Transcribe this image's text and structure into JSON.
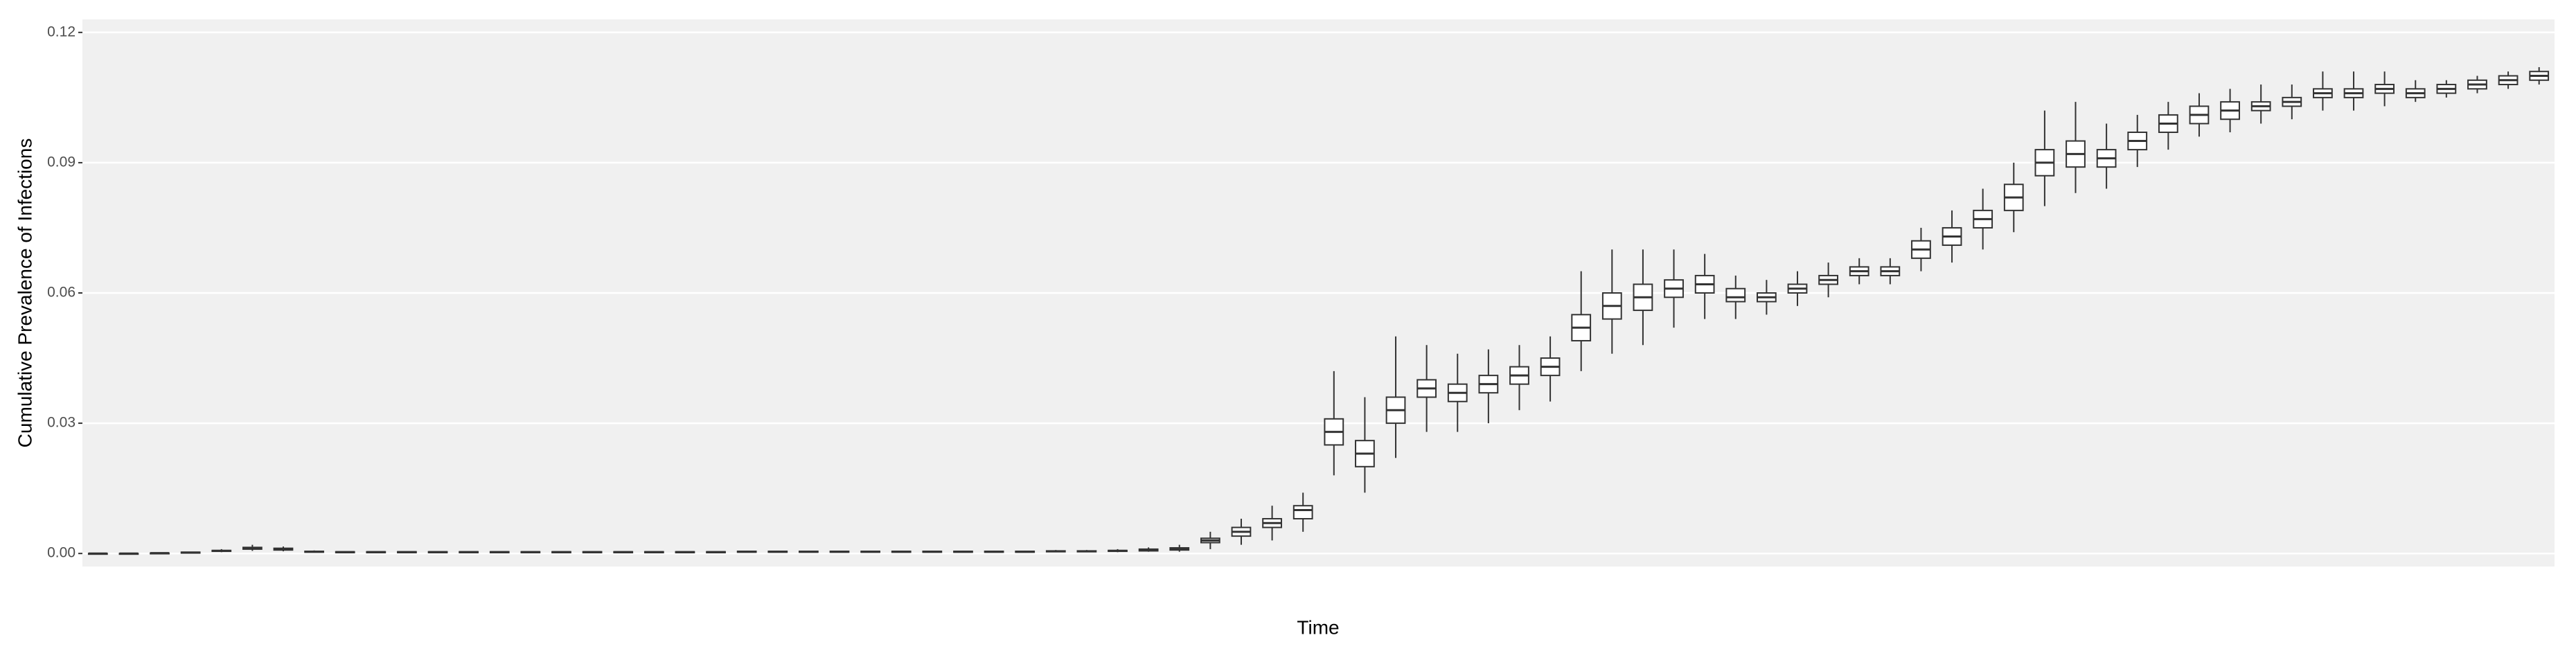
{
  "chart_data": {
    "type": "boxplot",
    "x_label": "Time",
    "y_label": "Cumulative Prevalence of Infections",
    "ylim": [
      -0.003,
      0.123
    ],
    "yticks": [
      {
        "value": 0,
        "label": "0.00"
      },
      0.03,
      0.06,
      0.09,
      0.12
    ],
    "grid": true,
    "box_color": "#333333",
    "box_fill": "#ffffff",
    "median": [
      0,
      0,
      0.0001,
      0.0002,
      0.0006,
      0.0012,
      0.001,
      0.0004,
      0.0003,
      0.0003,
      0.0003,
      0.0003,
      0.0003,
      0.0003,
      0.0003,
      0.0003,
      0.0003,
      0.0003,
      0.0003,
      0.0003,
      0.0003,
      0.0004,
      0.0004,
      0.0004,
      0.0004,
      0.0004,
      0.0004,
      0.0004,
      0.0004,
      0.0004,
      0.0004,
      0.0005,
      0.0005,
      0.0006,
      0.0008,
      0.001,
      0.003,
      0.005,
      0.007,
      0.01,
      0.028,
      0.023,
      0.033,
      0.038,
      0.037,
      0.039,
      0.041,
      0.043,
      0.052,
      0.057,
      0.059,
      0.061,
      0.062,
      0.059,
      0.059,
      0.061,
      0.063,
      0.065,
      0.065,
      0.07,
      0.073,
      0.077,
      0.082,
      0.09,
      0.092,
      0.091,
      0.095,
      0.099,
      0.101,
      0.102,
      0.103,
      0.104,
      0.106,
      0.106,
      0.107,
      0.106,
      0.107,
      0.108,
      0.109,
      0.11
    ],
    "q1": [
      0,
      0,
      0.0001,
      0.0001,
      0.0005,
      0.001,
      0.0008,
      0.0003,
      0.0002,
      0.0002,
      0.0002,
      0.0002,
      0.0002,
      0.0002,
      0.0002,
      0.0002,
      0.0002,
      0.0002,
      0.0002,
      0.0002,
      0.0002,
      0.0003,
      0.0003,
      0.0003,
      0.0003,
      0.0003,
      0.0003,
      0.0003,
      0.0003,
      0.0003,
      0.0003,
      0.0004,
      0.0004,
      0.0005,
      0.0006,
      0.0008,
      0.0025,
      0.004,
      0.006,
      0.008,
      0.025,
      0.02,
      0.03,
      0.036,
      0.035,
      0.037,
      0.039,
      0.041,
      0.049,
      0.054,
      0.056,
      0.059,
      0.06,
      0.058,
      0.058,
      0.06,
      0.062,
      0.064,
      0.064,
      0.068,
      0.071,
      0.075,
      0.079,
      0.087,
      0.089,
      0.089,
      0.093,
      0.097,
      0.099,
      0.1,
      0.102,
      0.103,
      0.105,
      0.105,
      0.106,
      0.105,
      0.106,
      0.107,
      0.108,
      0.109
    ],
    "q3": [
      0,
      0,
      0.0001,
      0.0003,
      0.0007,
      0.0014,
      0.0012,
      0.0005,
      0.0004,
      0.0004,
      0.0004,
      0.0004,
      0.0004,
      0.0004,
      0.0004,
      0.0004,
      0.0004,
      0.0004,
      0.0004,
      0.0004,
      0.0004,
      0.0005,
      0.0005,
      0.0005,
      0.0005,
      0.0005,
      0.0005,
      0.0005,
      0.0005,
      0.0005,
      0.0005,
      0.0006,
      0.0006,
      0.0007,
      0.001,
      0.0013,
      0.0035,
      0.006,
      0.008,
      0.011,
      0.031,
      0.026,
      0.036,
      0.04,
      0.039,
      0.041,
      0.043,
      0.045,
      0.055,
      0.06,
      0.062,
      0.063,
      0.064,
      0.061,
      0.06,
      0.062,
      0.064,
      0.066,
      0.066,
      0.072,
      0.075,
      0.079,
      0.085,
      0.093,
      0.095,
      0.093,
      0.097,
      0.101,
      0.103,
      0.104,
      0.104,
      0.105,
      0.107,
      0.107,
      0.108,
      0.107,
      0.108,
      0.109,
      0.11,
      0.111
    ],
    "low": [
      0,
      0,
      0,
      0.0001,
      0.0003,
      0.0006,
      0.0005,
      0.0002,
      0.0001,
      0.0001,
      0.0001,
      0.0001,
      0.0001,
      0.0001,
      0.0001,
      0.0001,
      0.0001,
      0.0001,
      0.0001,
      0.0001,
      0.0001,
      0.0002,
      0.0002,
      0.0002,
      0.0002,
      0.0002,
      0.0002,
      0.0002,
      0.0002,
      0.0002,
      0.0002,
      0.0003,
      0.0003,
      0.0003,
      0.0004,
      0.0004,
      0.001,
      0.002,
      0.003,
      0.005,
      0.018,
      0.014,
      0.022,
      0.028,
      0.028,
      0.03,
      0.033,
      0.035,
      0.042,
      0.046,
      0.048,
      0.052,
      0.054,
      0.054,
      0.055,
      0.057,
      0.059,
      0.062,
      0.062,
      0.065,
      0.067,
      0.07,
      0.074,
      0.08,
      0.083,
      0.084,
      0.089,
      0.093,
      0.096,
      0.097,
      0.099,
      0.1,
      0.102,
      0.102,
      0.103,
      0.104,
      0.105,
      0.106,
      0.107,
      0.108
    ],
    "high": [
      0.0001,
      0.0001,
      0.0002,
      0.0004,
      0.001,
      0.002,
      0.0016,
      0.0007,
      0.0005,
      0.0005,
      0.0005,
      0.0005,
      0.0005,
      0.0005,
      0.0005,
      0.0005,
      0.0005,
      0.0005,
      0.0005,
      0.0005,
      0.0005,
      0.0006,
      0.0006,
      0.0006,
      0.0006,
      0.0006,
      0.0006,
      0.0006,
      0.0006,
      0.0006,
      0.0006,
      0.0008,
      0.0008,
      0.001,
      0.0014,
      0.002,
      0.005,
      0.008,
      0.011,
      0.014,
      0.042,
      0.036,
      0.05,
      0.048,
      0.046,
      0.047,
      0.048,
      0.05,
      0.065,
      0.07,
      0.07,
      0.07,
      0.069,
      0.064,
      0.063,
      0.065,
      0.067,
      0.068,
      0.068,
      0.075,
      0.079,
      0.084,
      0.09,
      0.102,
      0.104,
      0.099,
      0.101,
      0.104,
      0.106,
      0.107,
      0.108,
      0.108,
      0.111,
      0.111,
      0.111,
      0.109,
      0.109,
      0.11,
      0.111,
      0.112
    ]
  }
}
